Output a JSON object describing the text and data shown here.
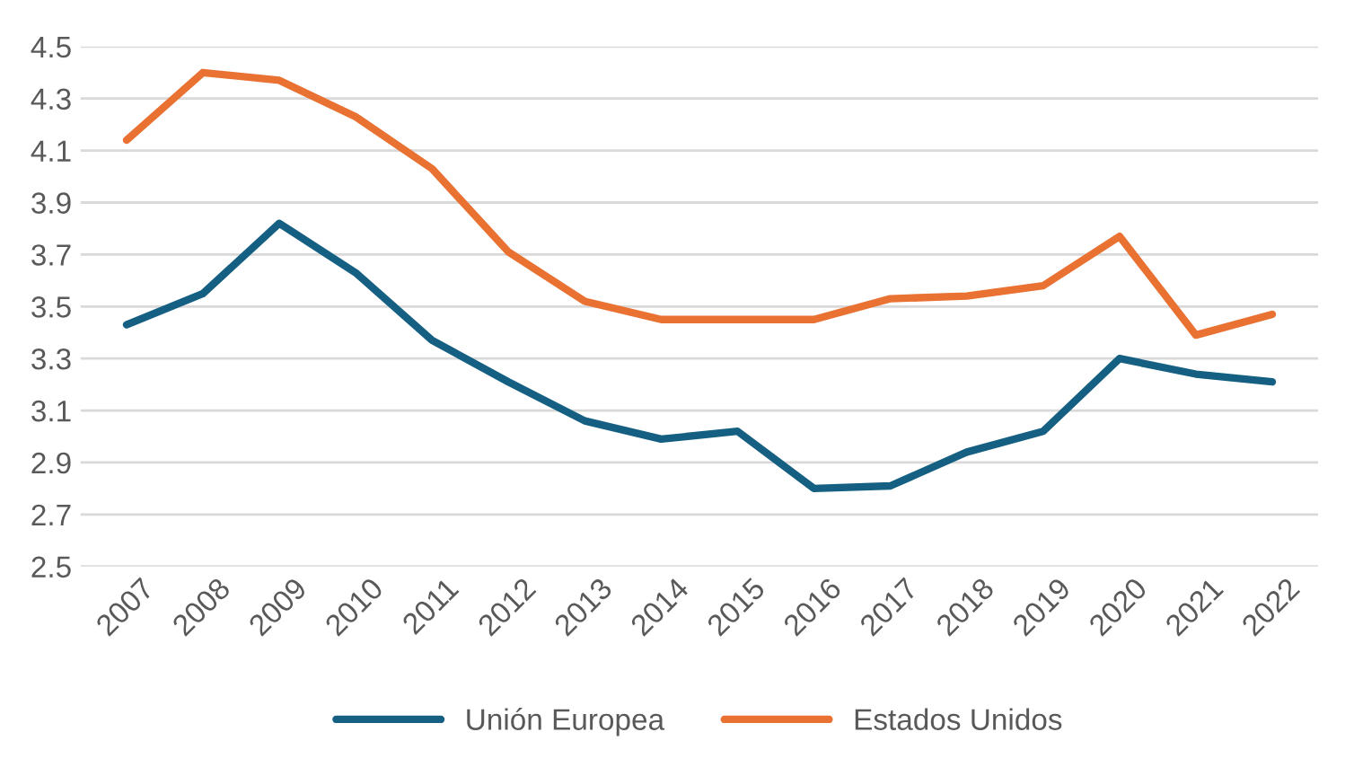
{
  "chart_data": {
    "type": "line",
    "categories": [
      "2007",
      "2008",
      "2009",
      "2010",
      "2011",
      "2012",
      "2013",
      "2014",
      "2015",
      "2016",
      "2017",
      "2018",
      "2019",
      "2020",
      "2021",
      "2022"
    ],
    "series": [
      {
        "name": "Unión Europea",
        "color": "#156082",
        "values": [
          3.43,
          3.55,
          3.82,
          3.63,
          3.37,
          3.21,
          3.06,
          2.99,
          3.02,
          2.8,
          2.81,
          2.94,
          3.02,
          3.3,
          3.24,
          3.21
        ]
      },
      {
        "name": "Estados Unidos",
        "color": "#e97132",
        "values": [
          4.14,
          4.4,
          4.37,
          4.23,
          4.03,
          3.71,
          3.52,
          3.45,
          3.45,
          3.45,
          3.53,
          3.54,
          3.58,
          3.77,
          3.39,
          3.47
        ]
      }
    ],
    "ylim": [
      2.5,
      4.5
    ],
    "yticks": [
      2.5,
      2.7,
      2.9,
      3.1,
      3.3,
      3.5,
      3.7,
      3.9,
      4.1,
      4.3,
      4.5
    ],
    "grid": "y",
    "legend": "bottom",
    "marker": "none",
    "line_style": "solid"
  }
}
